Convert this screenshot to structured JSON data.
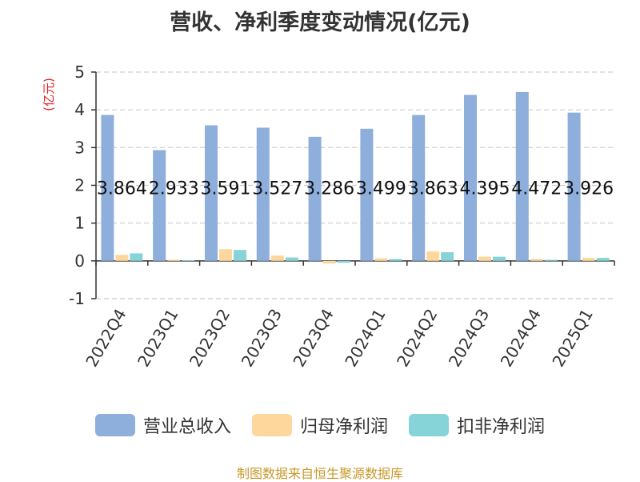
{
  "title": "营收、净利季度变动情况(亿元)",
  "source": "制图数据来自恒生聚源数据库",
  "chart_data": {
    "type": "bar",
    "unit_label": "(亿元)",
    "categories": [
      "2022Q4",
      "2023Q1",
      "2023Q2",
      "2023Q3",
      "2023Q4",
      "2024Q1",
      "2024Q2",
      "2024Q3",
      "2024Q4",
      "2025Q1"
    ],
    "series": [
      {
        "name": "营业总收入",
        "color": "#8eaedb",
        "values": [
          3.864,
          2.933,
          3.591,
          3.527,
          3.286,
          3.499,
          3.863,
          4.395,
          4.472,
          3.926
        ],
        "labels": [
          "3.864",
          "2.933",
          "3.591",
          "3.527",
          "3.286",
          "3.499",
          "3.863",
          "4.395",
          "4.472",
          "3.926"
        ]
      },
      {
        "name": "归母净利润",
        "color": "#fdd79b",
        "values": [
          0.16,
          0.03,
          0.31,
          0.14,
          -0.07,
          0.07,
          0.25,
          0.11,
          0.05,
          0.08
        ]
      },
      {
        "name": "扣非净利润",
        "color": "#86d4d8",
        "values": [
          0.2,
          0.02,
          0.29,
          0.09,
          -0.05,
          0.05,
          0.23,
          0.11,
          0.03,
          0.08
        ]
      }
    ],
    "ylim": [
      -1,
      5
    ],
    "yticks": [
      -1,
      0,
      1,
      2,
      3,
      4,
      5
    ],
    "grid": true,
    "legend_position": "bottom"
  }
}
